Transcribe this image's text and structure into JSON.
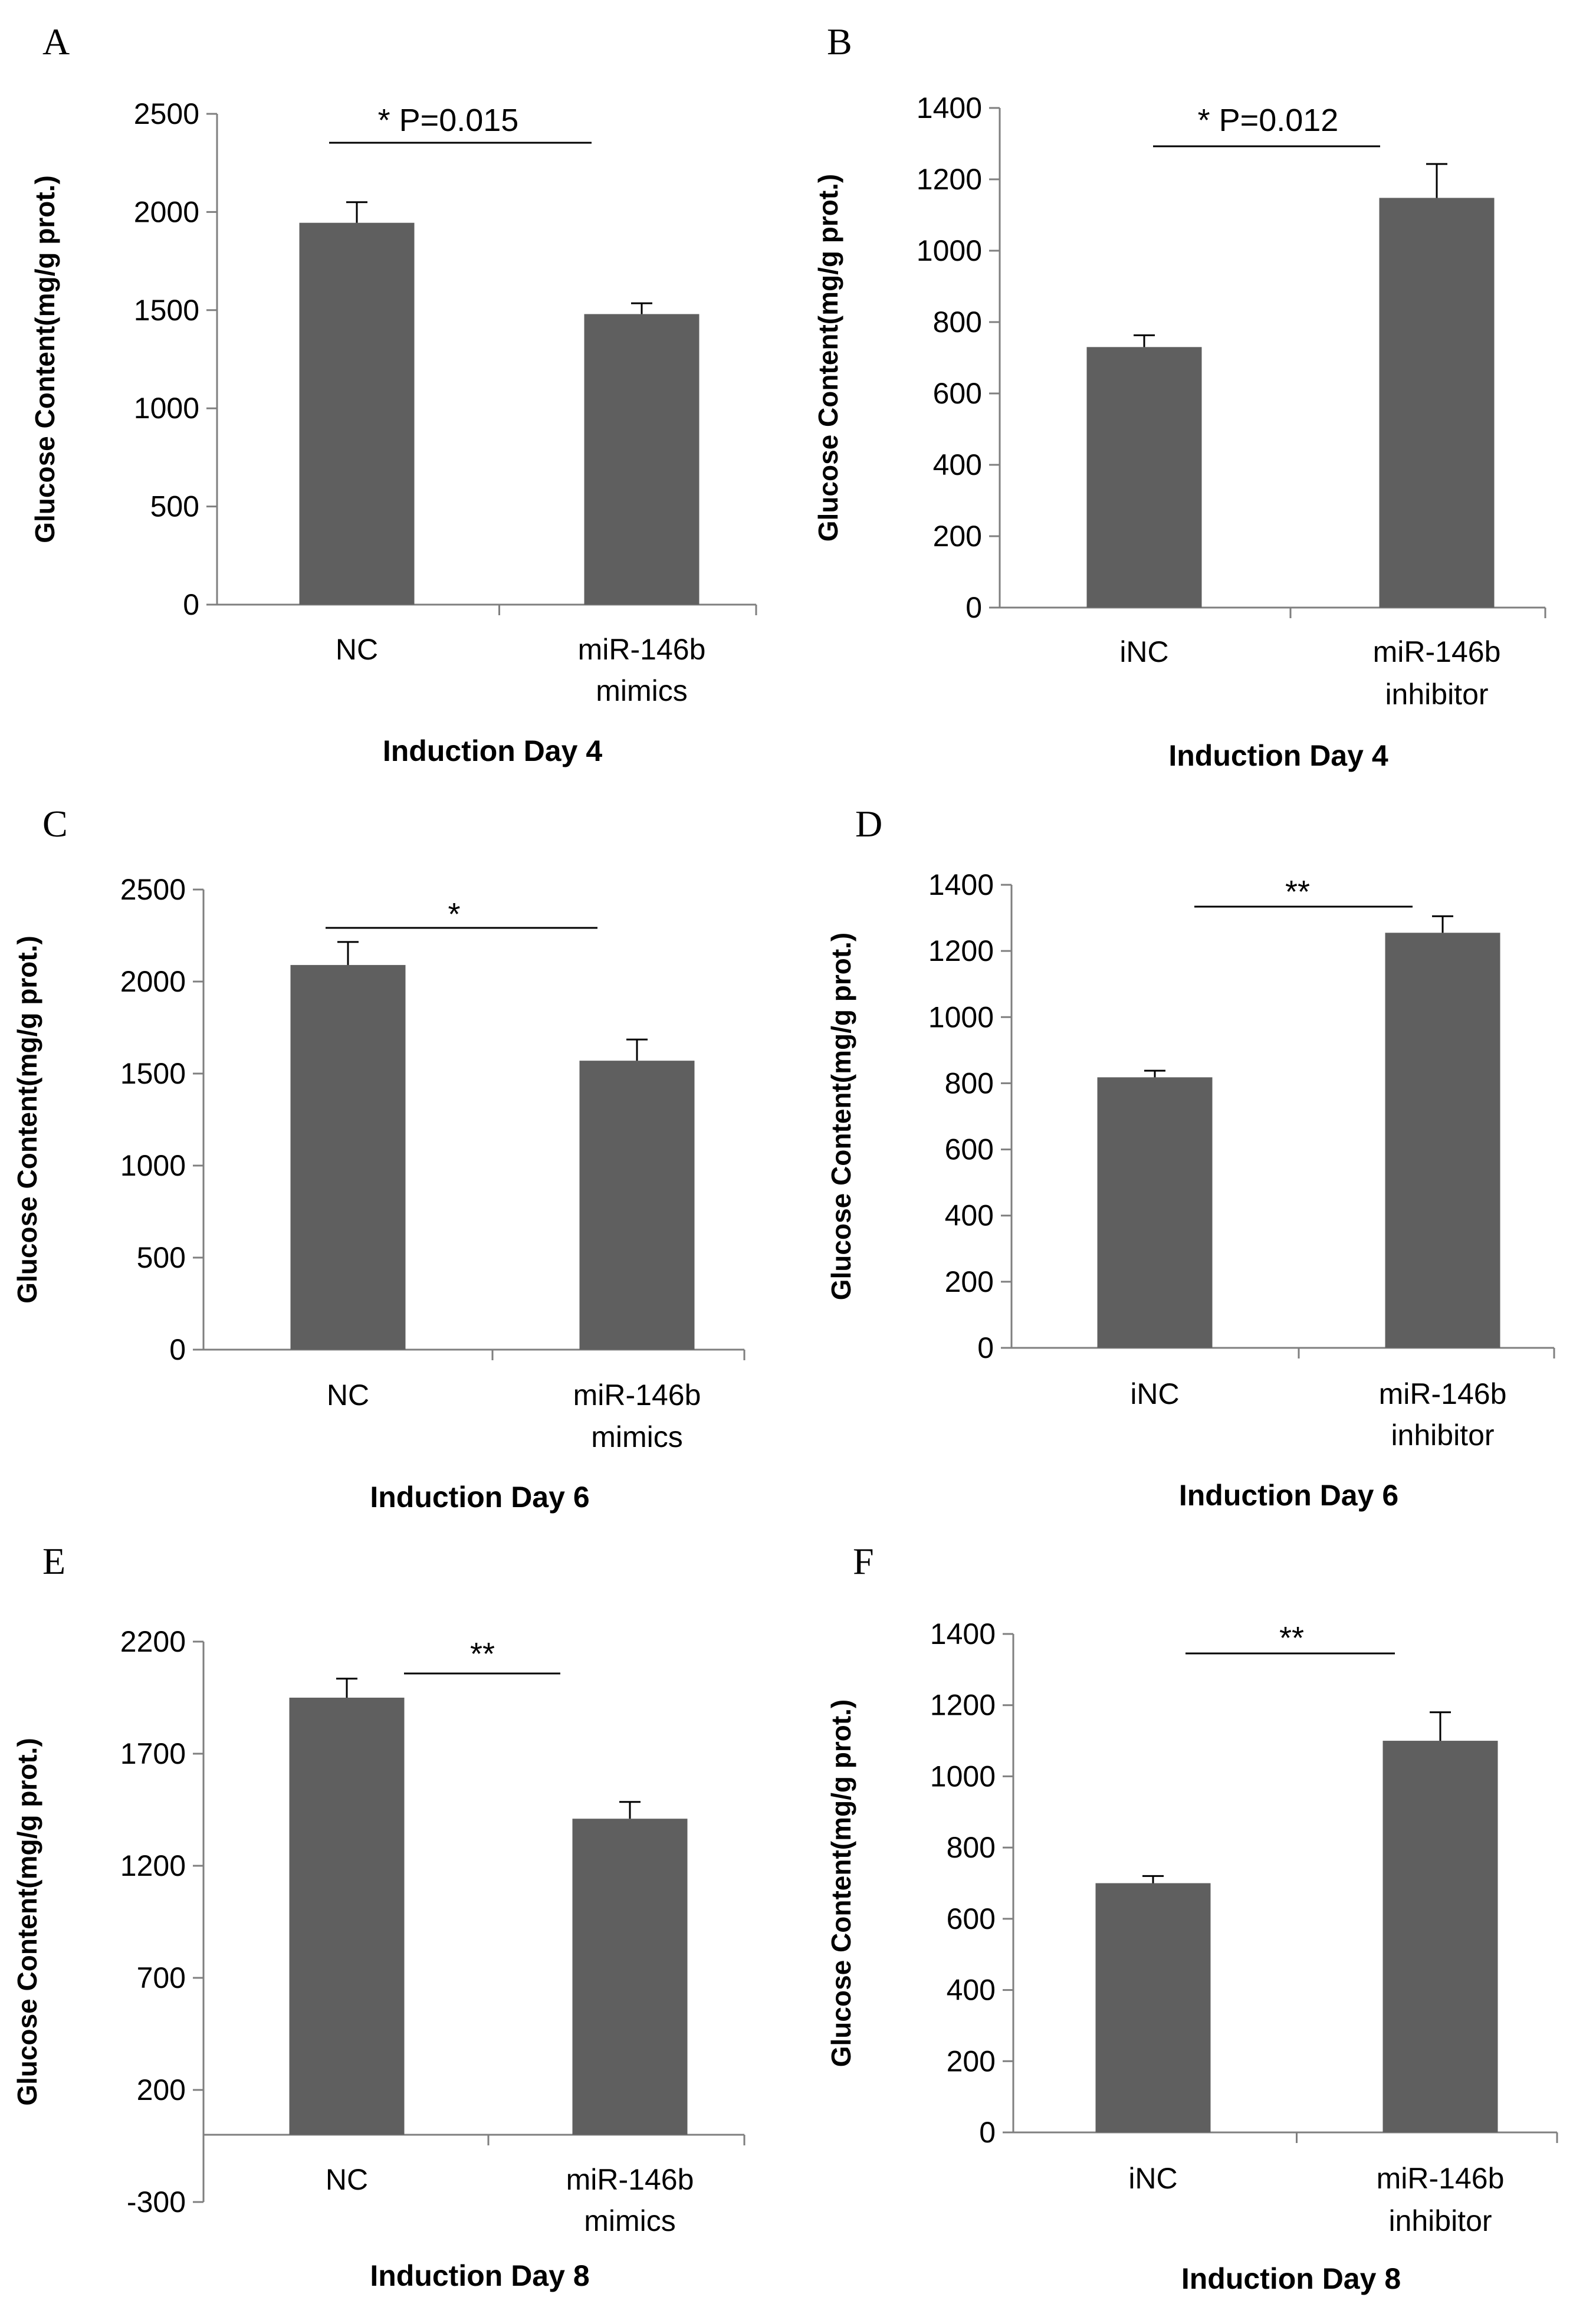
{
  "chart_data": [
    {
      "type": "bar",
      "panel": "A",
      "title": "",
      "xlabel": "Induction Day 4",
      "ylabel": "Glucose Content(mg/g prot.)",
      "ylim": [
        0,
        2500
      ],
      "yticks": [
        0,
        500,
        1000,
        1500,
        2000,
        2500
      ],
      "categories": [
        [
          "NC"
        ],
        [
          "miR-146b",
          "mimics"
        ]
      ],
      "values": [
        1945,
        1480
      ],
      "errors": [
        105,
        55
      ],
      "significance": "* P=0.015"
    },
    {
      "type": "bar",
      "panel": "B",
      "title": "",
      "xlabel": "Induction Day 4",
      "ylabel": "Glucose Content(mg/g prot.)",
      "ylim": [
        0,
        1400
      ],
      "yticks": [
        0,
        200,
        400,
        600,
        800,
        1000,
        1200,
        1400
      ],
      "categories": [
        [
          "iNC"
        ],
        [
          "miR-146b",
          "inhibitor"
        ]
      ],
      "values": [
        730,
        1148
      ],
      "errors": [
        33,
        95
      ],
      "significance": "* P=0.012"
    },
    {
      "type": "bar",
      "panel": "C",
      "title": "",
      "xlabel": "Induction Day 6",
      "ylabel": "Glucose Content(mg/g prot.)",
      "ylim": [
        0,
        2500
      ],
      "yticks": [
        0,
        500,
        1000,
        1500,
        2000,
        2500
      ],
      "categories": [
        [
          "NC"
        ],
        [
          "miR-146b",
          "mimics"
        ]
      ],
      "values": [
        2090,
        1570
      ],
      "errors": [
        125,
        115
      ],
      "significance": "*"
    },
    {
      "type": "bar",
      "panel": "D",
      "title": "",
      "xlabel": "Induction Day 6",
      "ylabel": "Glucose Content(mg/g prot.)",
      "ylim": [
        0,
        1400
      ],
      "yticks": [
        0,
        200,
        400,
        600,
        800,
        1000,
        1200,
        1400
      ],
      "categories": [
        [
          "iNC"
        ],
        [
          "miR-146b",
          "inhibitor"
        ]
      ],
      "values": [
        818,
        1255
      ],
      "errors": [
        20,
        50
      ],
      "significance": "**"
    },
    {
      "type": "bar",
      "panel": "E",
      "title": "",
      "xlabel": "Induction Day 8",
      "ylabel": "Glucose Content(mg/g prot.)",
      "ylim": [
        -300,
        2200
      ],
      "yticks": [
        -300,
        200,
        700,
        1200,
        1700,
        2200
      ],
      "categories": [
        [
          "NC"
        ],
        [
          "miR-146b",
          "mimics"
        ]
      ],
      "values": [
        1950,
        1410
      ],
      "errors": [
        85,
        75
      ],
      "significance": "**"
    },
    {
      "type": "bar",
      "panel": "F",
      "title": "",
      "xlabel": "Induction Day 8",
      "ylabel": "Glucose Content(mg/g prot.)",
      "ylim": [
        0,
        1400
      ],
      "yticks": [
        0,
        200,
        400,
        600,
        800,
        1000,
        1200,
        1400
      ],
      "categories": [
        [
          "iNC"
        ],
        [
          "miR-146b",
          "inhibitor"
        ]
      ],
      "values": [
        700,
        1100
      ],
      "errors": [
        20,
        80
      ],
      "significance": "**"
    }
  ]
}
